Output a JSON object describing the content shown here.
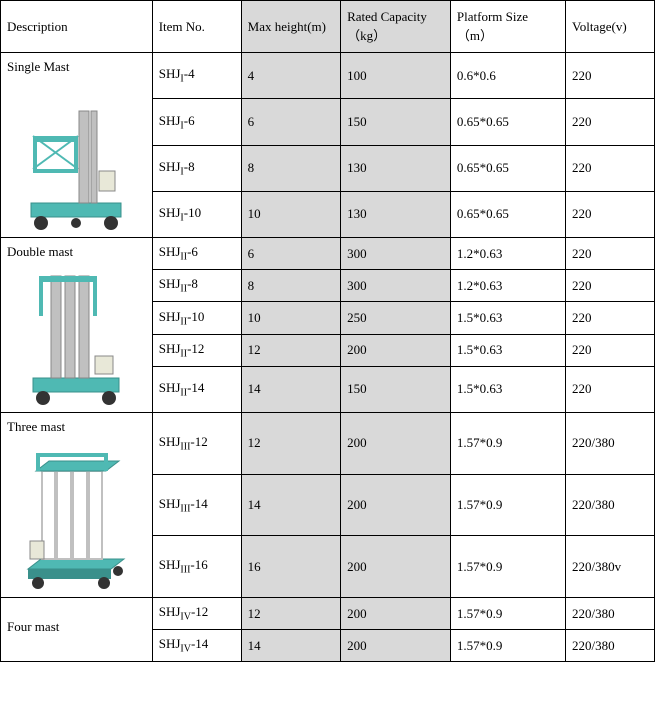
{
  "headers": {
    "description": "Description",
    "item_no": "Item No.",
    "max_height": "Max height(m)",
    "rated_capacity": "Rated Capacity\n（kg）",
    "platform_size": "Platform Size\n（m）",
    "voltage": "Voltage(v)"
  },
  "colors": {
    "lift_body": "#4fb9b3",
    "lift_dark": "#3a908b",
    "lift_mast": "#c0c0c0",
    "lift_wheel": "#333333",
    "lift_panel": "#e8e8d8",
    "shade_bg": "#d9d9d9"
  },
  "groups": [
    {
      "label": "Single Mast",
      "illus": "single",
      "rows": [
        {
          "item": "SHJI-4",
          "sub": "I",
          "max": "4",
          "cap": "100",
          "plat": "0.6*0.6",
          "volt": "220",
          "h": "tall"
        },
        {
          "item": "SHJI-6",
          "sub": "I",
          "max": "6",
          "cap": "150",
          "plat": "0.65*0.65",
          "volt": "220",
          "h": "tall"
        },
        {
          "item": "SHJI-8",
          "sub": "I",
          "max": "8",
          "cap": "130",
          "plat": "0.65*0.65",
          "volt": "220",
          "h": "tall"
        },
        {
          "item": "SHJI-10",
          "sub": "I",
          "max": "10",
          "cap": "130",
          "plat": "0.65*0.65",
          "volt": "220",
          "h": "tall"
        }
      ]
    },
    {
      "label": "Double mast",
      "illus": "double",
      "rows": [
        {
          "item": "SHJII-6",
          "sub": "II",
          "max": "6",
          "cap": "300",
          "plat": "1.2*0.63",
          "volt": "220",
          "h": "med"
        },
        {
          "item": "SHJII-8",
          "sub": "II",
          "max": "8",
          "cap": "300",
          "plat": "1.2*0.63",
          "volt": "220",
          "h": "med"
        },
        {
          "item": "SHJII-10",
          "sub": "II",
          "max": "10",
          "cap": "250",
          "plat": "1.5*0.63",
          "volt": "220",
          "h": "med"
        },
        {
          "item": "SHJII-12",
          "sub": "II",
          "max": "12",
          "cap": "200",
          "plat": "1.5*0.63",
          "volt": "220",
          "h": "med"
        },
        {
          "item": "SHJII-14",
          "sub": "II",
          "max": "14",
          "cap": "150",
          "plat": "1.5*0.63",
          "volt": "220",
          "h": "tall"
        }
      ]
    },
    {
      "label": "Three mast",
      "illus": "three",
      "rows": [
        {
          "item": "SHJIII-12",
          "sub": "III",
          "max": "12",
          "cap": "200",
          "plat": "1.57*0.9",
          "volt": "220/380",
          "h": "tall"
        },
        {
          "item": "SHJIII-14",
          "sub": "III",
          "max": "14",
          "cap": "200",
          "plat": "1.57*0.9",
          "volt": "220/380",
          "h": "tall"
        },
        {
          "item": "SHJIII-16",
          "sub": "III",
          "max": "16",
          "cap": "200",
          "plat": "1.57*0.9",
          "volt": "220/380v",
          "h": "tall"
        }
      ]
    },
    {
      "label": "Four mast",
      "illus": "none",
      "rows": [
        {
          "item": "SHJIV-12",
          "sub": "IV",
          "max": "12",
          "cap": "200",
          "plat": "1.57*0.9",
          "volt": "220/380",
          "h": "med"
        },
        {
          "item": "SHJIV-14",
          "sub": "IV",
          "max": "14",
          "cap": "200",
          "plat": "1.57*0.9",
          "volt": "220/380",
          "h": "med"
        }
      ]
    }
  ]
}
